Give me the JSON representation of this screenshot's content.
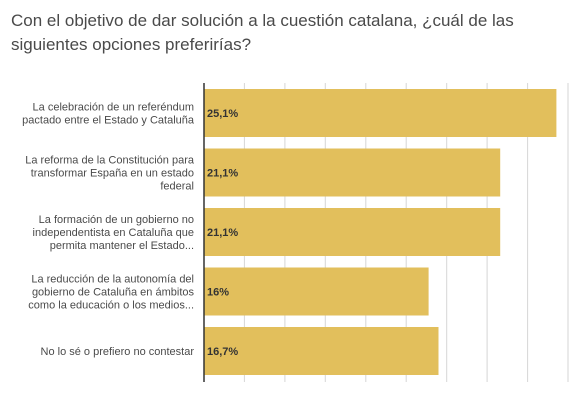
{
  "chart_data": {
    "type": "bar",
    "orientation": "horizontal",
    "title": "Con el objetivo de dar solución a la cuestión catalana, ¿cuál de las siguientes opciones preferirías?",
    "categories": [
      [
        "La celebración de un referéndum",
        "pactado entre el Estado y Cataluña"
      ],
      [
        "La reforma de la Constitución para",
        "transformar España en un estado",
        "federal"
      ],
      [
        "La formación de un gobierno no",
        "independentista en Cataluña que",
        "permita mantener el Estado..."
      ],
      [
        "La reducción de la autonomía del",
        "gobierno de Cataluña en ámbitos",
        "como la educación o los medios..."
      ],
      [
        "No lo sé o prefiero no contestar"
      ]
    ],
    "values": [
      25.1,
      21.1,
      21.1,
      16,
      16.7
    ],
    "value_labels": [
      "25,1%",
      "21,1%",
      "21,1%",
      "16%",
      "16,7%"
    ],
    "unit": "%",
    "xlim": [
      0,
      25.5
    ],
    "grid": true,
    "bar_color": "#e2bf5c",
    "grid_color": "#d6d6d6",
    "axis_color": "#333333"
  }
}
